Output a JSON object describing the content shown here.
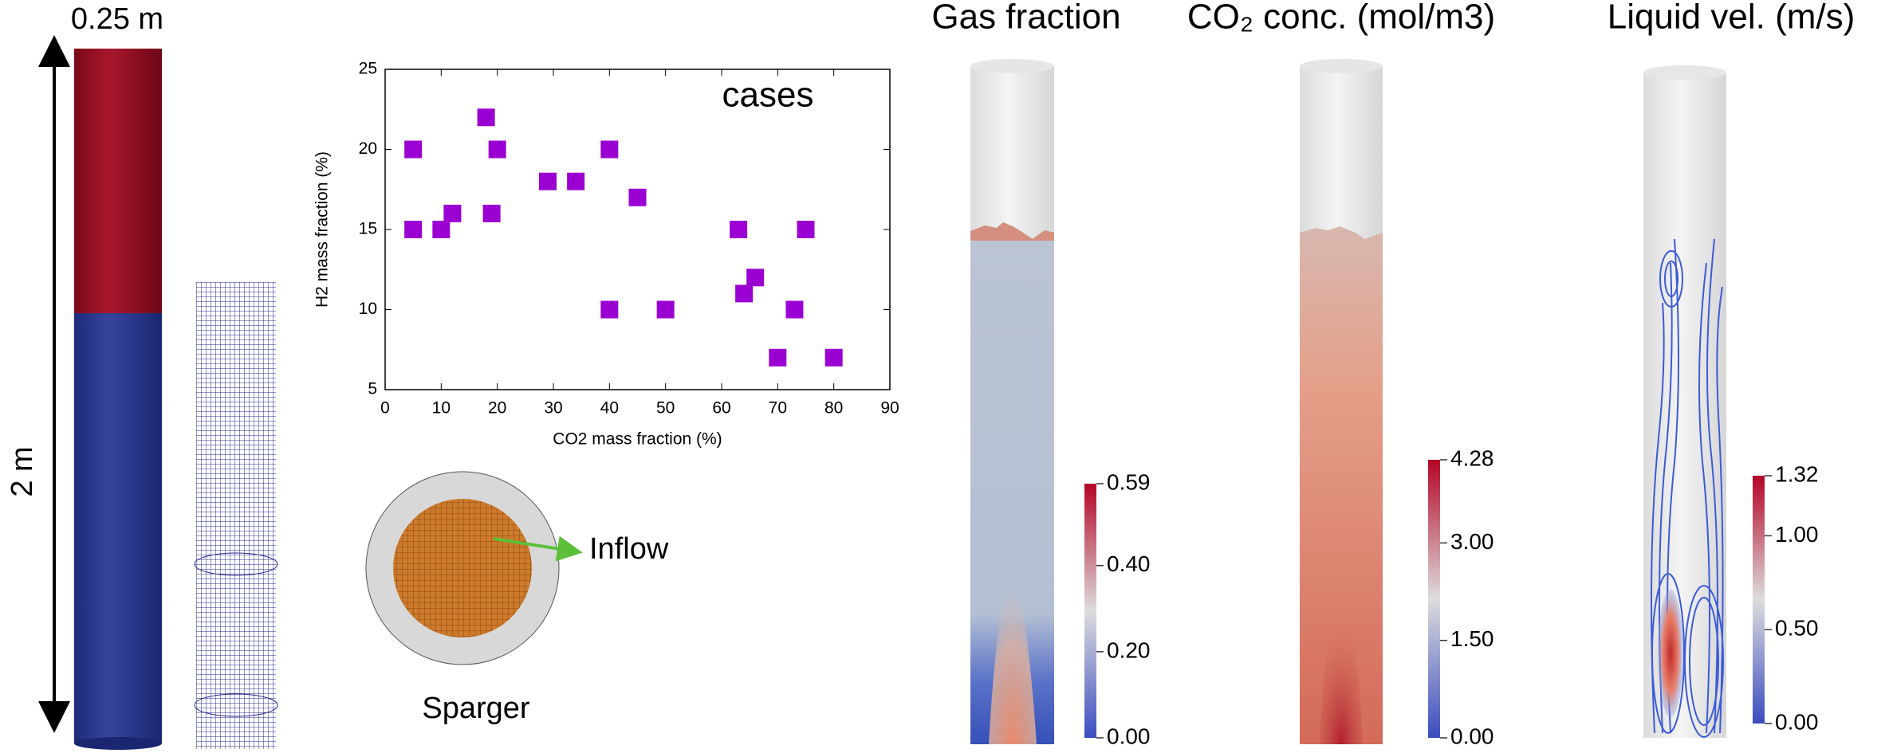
{
  "chart_data": {
    "type": "scatter",
    "annotation": "cases",
    "xlabel": "CO2 mass fraction (%)",
    "ylabel": "H2 mass fraction (%)",
    "x": [
      5,
      5,
      10,
      12,
      18,
      19,
      20,
      29,
      34,
      40,
      40,
      45,
      50,
      63,
      64,
      66,
      70,
      73,
      75,
      80
    ],
    "values": [
      20,
      15,
      15,
      16,
      22,
      16,
      20,
      18,
      18,
      20,
      10,
      17,
      10,
      15,
      11,
      12,
      7,
      10,
      15,
      7
    ],
    "color": "#9b00d3",
    "marker": "square",
    "xlim": [
      0,
      90
    ],
    "xticks": [
      0,
      10,
      20,
      30,
      40,
      50,
      60,
      70,
      80,
      90
    ],
    "ylim": [
      5,
      25
    ],
    "yticks": [
      5,
      10,
      15,
      20,
      25
    ]
  },
  "geometry": {
    "width_label": "0.25 m",
    "height_label": "2 m"
  },
  "sparger": {
    "label": "Sparger",
    "inflow_label": "Inflow"
  },
  "fields": [
    {
      "title": "Gas fraction",
      "lim": [
        0,
        0.59
      ],
      "ticks": [
        {
          "value": 0,
          "label": "0.00"
        },
        {
          "value": 0.2,
          "label": "0.20"
        },
        {
          "value": 0.4,
          "label": "0.40"
        },
        {
          "value": 0.59,
          "label": "0.59"
        }
      ]
    },
    {
      "title": "CO₂ conc. (mol/m3)",
      "lim": [
        0,
        4.28
      ],
      "ticks": [
        {
          "value": 0,
          "label": "0.00"
        },
        {
          "value": 1.5,
          "label": "1.50"
        },
        {
          "value": 3,
          "label": "3.00"
        },
        {
          "value": 4.28,
          "label": "4.28"
        }
      ]
    },
    {
      "title": "Liquid vel. (m/s)",
      "lim": [
        0,
        1.32
      ],
      "ticks": [
        {
          "value": 0,
          "label": "0.00"
        },
        {
          "value": 0.5,
          "label": "0.50"
        },
        {
          "value": 1,
          "label": "1.00"
        },
        {
          "value": 1.32,
          "label": "1.32"
        }
      ]
    }
  ]
}
